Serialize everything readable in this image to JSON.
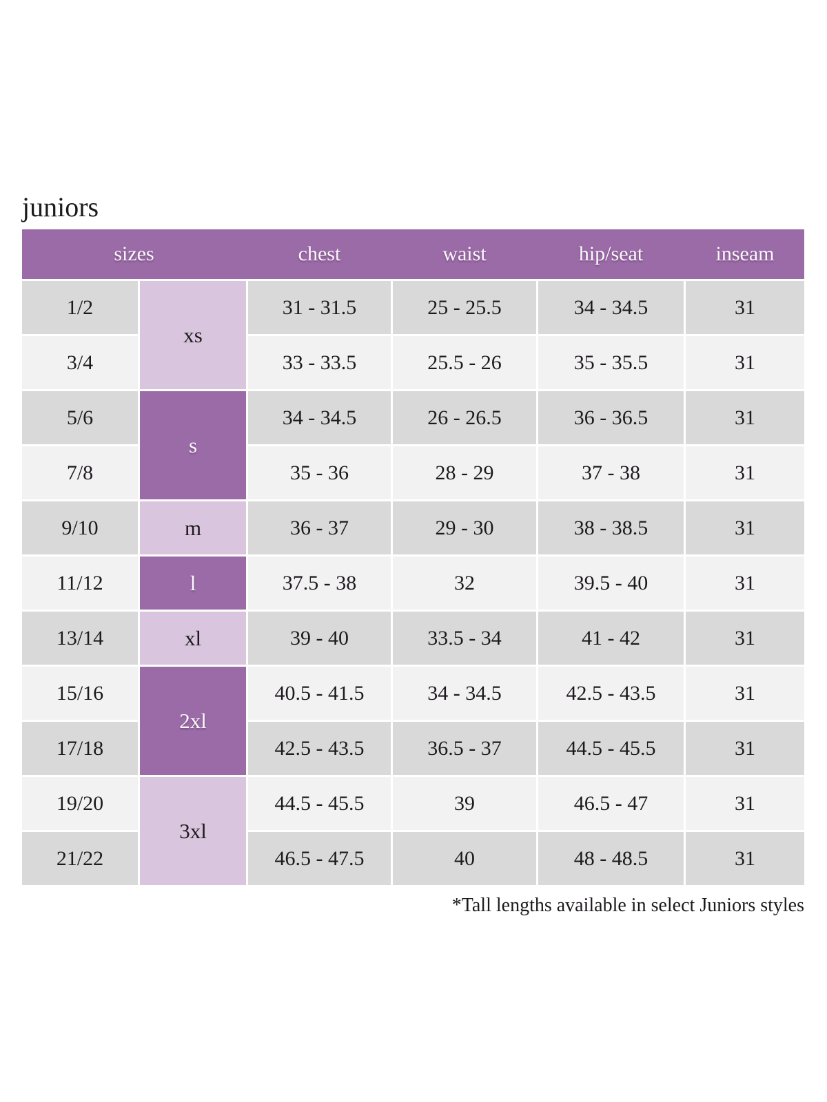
{
  "page": {
    "title": "juniors",
    "footnote": "*Tall lengths available in select Juniors styles"
  },
  "colors": {
    "page_bg": "#ffffff",
    "header_bg": "#9b6ba7",
    "header_text": "#fbf9fc",
    "size_dark_bg": "#9b6ba7",
    "size_dark_text": "#fbf9fc",
    "size_light_bg": "#d9c6de",
    "size_light_text": "#1d1a1d",
    "row_dark_bg": "#d9d9d9",
    "row_light_bg": "#f3f2f3",
    "cell_text": "#1d1a1d"
  },
  "table": {
    "headers": {
      "sizes": "sizes",
      "chest": "chest",
      "waist": "waist",
      "hip_seat": "hip/seat",
      "inseam": "inseam"
    },
    "size_groups": [
      {
        "label": "xs",
        "shade": "light",
        "rows": [
          {
            "size": "1/2",
            "chest": "31 - 31.5",
            "waist": "25 - 25.5",
            "hip_seat": "34 - 34.5",
            "inseam": "31"
          },
          {
            "size": "3/4",
            "chest": "33 - 33.5",
            "waist": "25.5 - 26",
            "hip_seat": "35 - 35.5",
            "inseam": "31"
          }
        ]
      },
      {
        "label": "s",
        "shade": "dark",
        "rows": [
          {
            "size": "5/6",
            "chest": "34 - 34.5",
            "waist": "26 - 26.5",
            "hip_seat": "36 - 36.5",
            "inseam": "31"
          },
          {
            "size": "7/8",
            "chest": "35 - 36",
            "waist": "28 - 29",
            "hip_seat": "37 - 38",
            "inseam": "31"
          }
        ]
      },
      {
        "label": "m",
        "shade": "light",
        "rows": [
          {
            "size": "9/10",
            "chest": "36 - 37",
            "waist": "29 - 30",
            "hip_seat": "38 - 38.5",
            "inseam": "31"
          }
        ]
      },
      {
        "label": "l",
        "shade": "dark",
        "rows": [
          {
            "size": "11/12",
            "chest": "37.5 - 38",
            "waist": "32",
            "hip_seat": "39.5 - 40",
            "inseam": "31"
          }
        ]
      },
      {
        "label": "xl",
        "shade": "light",
        "rows": [
          {
            "size": "13/14",
            "chest": "39 - 40",
            "waist": "33.5 - 34",
            "hip_seat": "41 - 42",
            "inseam": "31"
          }
        ]
      },
      {
        "label": "2xl",
        "shade": "dark",
        "rows": [
          {
            "size": "15/16",
            "chest": "40.5 - 41.5",
            "waist": "34 - 34.5",
            "hip_seat": "42.5 - 43.5",
            "inseam": "31"
          },
          {
            "size": "17/18",
            "chest": "42.5 - 43.5",
            "waist": "36.5 - 37",
            "hip_seat": "44.5 - 45.5",
            "inseam": "31"
          }
        ]
      },
      {
        "label": "3xl",
        "shade": "light",
        "rows": [
          {
            "size": "19/20",
            "chest": "44.5 - 45.5",
            "waist": "39",
            "hip_seat": "46.5 - 47",
            "inseam": "31"
          },
          {
            "size": "21/22",
            "chest": "46.5 - 47.5",
            "waist": "40",
            "hip_seat": "48 - 48.5",
            "inseam": "31"
          }
        ]
      }
    ]
  }
}
